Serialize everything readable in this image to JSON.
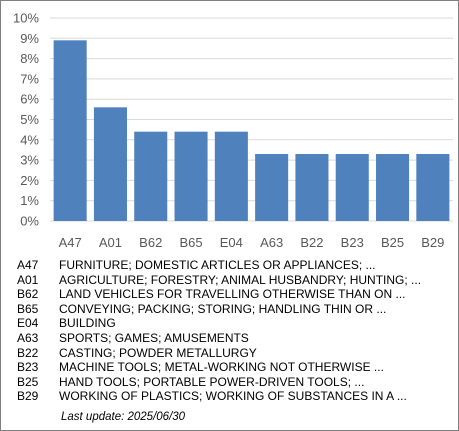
{
  "chart_data": {
    "type": "bar",
    "categories": [
      "A47",
      "A01",
      "B62",
      "B65",
      "E04",
      "A63",
      "B22",
      "B23",
      "B25",
      "B29"
    ],
    "values": [
      8.9,
      5.6,
      4.4,
      4.4,
      4.4,
      3.3,
      3.3,
      3.3,
      3.3,
      3.3
    ],
    "ylim": [
      0,
      10
    ],
    "yticks": [
      0,
      1,
      2,
      3,
      4,
      5,
      6,
      7,
      8,
      9,
      10
    ],
    "y_tick_labels": [
      "0%",
      "1%",
      "2%",
      "3%",
      "4%",
      "5%",
      "6%",
      "7%",
      "8%",
      "9%",
      "10%"
    ],
    "grid": true,
    "bar_color": "#4f81bd",
    "title": "",
    "xlabel": "",
    "ylabel": ""
  },
  "legend": [
    {
      "code": "A47",
      "desc": "FURNITURE; DOMESTIC ARTICLES OR APPLIANCES; ..."
    },
    {
      "code": "A01",
      "desc": "AGRICULTURE; FORESTRY; ANIMAL HUSBANDRY; HUNTING; ..."
    },
    {
      "code": "B62",
      "desc": "LAND VEHICLES FOR TRAVELLING OTHERWISE THAN ON ..."
    },
    {
      "code": "B65",
      "desc": "CONVEYING; PACKING; STORING; HANDLING THIN OR ..."
    },
    {
      "code": "E04",
      "desc": "BUILDING"
    },
    {
      "code": "A63",
      "desc": "SPORTS; GAMES; AMUSEMENTS"
    },
    {
      "code": "B22",
      "desc": "CASTING; POWDER METALLURGY"
    },
    {
      "code": "B23",
      "desc": "MACHINE TOOLS; METAL-WORKING NOT OTHERWISE ..."
    },
    {
      "code": "B25",
      "desc": "HAND TOOLS; PORTABLE POWER-DRIVEN TOOLS; ..."
    },
    {
      "code": "B29",
      "desc": "WORKING OF PLASTICS; WORKING OF SUBSTANCES IN A ..."
    }
  ],
  "last_update": "Last update:  2025/06/30"
}
